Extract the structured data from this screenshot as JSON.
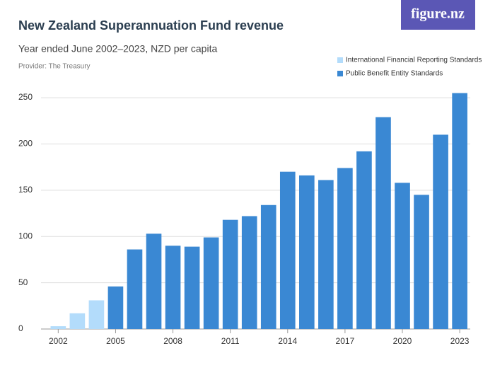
{
  "chart_data": {
    "type": "bar",
    "title": "New Zealand Superannuation Fund revenue",
    "subtitle": "Year ended June 2002–2023, NZD per capita",
    "provider": "Provider: The Treasury",
    "logo": "figure.nz",
    "x": [
      2002,
      2003,
      2004,
      2005,
      2006,
      2007,
      2008,
      2009,
      2010,
      2011,
      2012,
      2013,
      2014,
      2015,
      2016,
      2017,
      2018,
      2019,
      2020,
      2021,
      2022,
      2023
    ],
    "series": [
      {
        "name": "International Financial Reporting Standards",
        "color": "#b3dcfb",
        "values": [
          3,
          17,
          31,
          null,
          null,
          null,
          null,
          null,
          null,
          null,
          null,
          null,
          null,
          null,
          null,
          null,
          null,
          null,
          null,
          null,
          null,
          null
        ]
      },
      {
        "name": "Public Benefit Entity Standards",
        "color": "#3a88d3",
        "values": [
          null,
          null,
          null,
          46,
          86,
          103,
          90,
          89,
          99,
          118,
          122,
          134,
          170,
          166,
          161,
          174,
          192,
          229,
          158,
          145,
          210,
          255
        ]
      }
    ],
    "xlim": [
      2001.1,
      2023.55
    ],
    "xticks": [
      2002,
      2005,
      2008,
      2011,
      2014,
      2017,
      2020,
      2023
    ],
    "ylim": [
      0,
      260
    ],
    "yticks": [
      0,
      50,
      100,
      150,
      200,
      250
    ],
    "grid": true,
    "legend": "top-right"
  }
}
